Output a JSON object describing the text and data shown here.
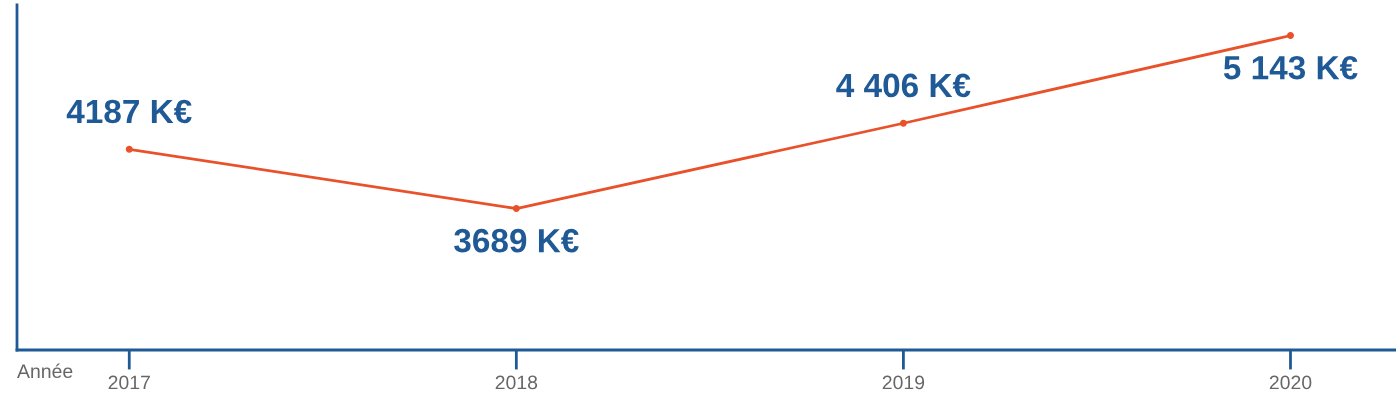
{
  "chart_data": {
    "type": "line",
    "xlabel": "Année",
    "categories": [
      "2017",
      "2018",
      "2019",
      "2020"
    ],
    "series": [
      {
        "color": "#e8512a",
        "values": [
          4187,
          3689,
          4406,
          5143
        ],
        "value_labels": [
          "4187 K€",
          "3689 K€",
          "4 406 K€",
          "5 143 K€"
        ]
      }
    ],
    "ylim": [
      2500,
      5400
    ],
    "tick_labels": "x",
    "grid": false,
    "legend": false,
    "marker": "circle",
    "line_style": "solid"
  }
}
